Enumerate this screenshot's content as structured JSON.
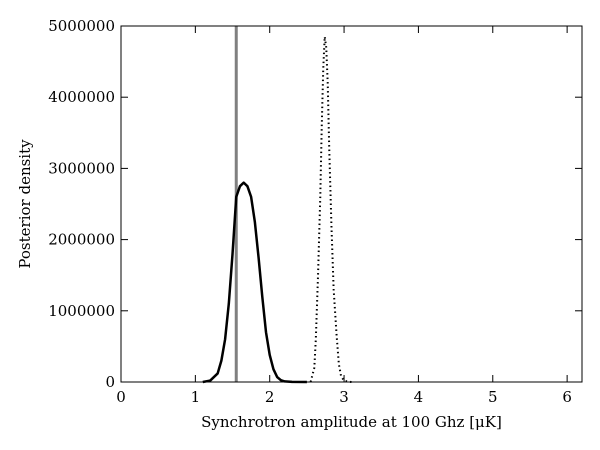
{
  "chart_data": {
    "type": "line",
    "title": "",
    "xlabel": "Synchrotron amplitude at 100 Ghz [μK]",
    "ylabel": "Posterior density",
    "xlim": [
      0,
      6.2
    ],
    "ylim": [
      0,
      5000000
    ],
    "xticks": [
      "0",
      "1",
      "2",
      "3",
      "4",
      "5",
      "6"
    ],
    "yticks": [
      "0",
      "1000000",
      "2000000",
      "3000000",
      "4000000",
      "5000000"
    ],
    "grid": false,
    "legend": "none",
    "reference_line": {
      "x": 1.55,
      "color": "#808080"
    },
    "series": [
      {
        "style": "solid",
        "color": "#000000",
        "x": [
          1.1,
          1.2,
          1.3,
          1.35,
          1.4,
          1.45,
          1.5,
          1.55,
          1.6,
          1.65,
          1.7,
          1.75,
          1.8,
          1.85,
          1.9,
          1.95,
          2.0,
          2.05,
          2.1,
          2.15,
          2.2,
          2.3,
          2.5
        ],
        "y": [
          0,
          20000,
          120000,
          300000,
          600000,
          1100000,
          1800000,
          2600000,
          2750000,
          2800000,
          2750000,
          2600000,
          2250000,
          1750000,
          1200000,
          700000,
          380000,
          180000,
          70000,
          25000,
          8000,
          1000,
          0
        ]
      },
      {
        "style": "dotted",
        "color": "#000000",
        "x": [
          2.55,
          2.6,
          2.62,
          2.65,
          2.68,
          2.7,
          2.72,
          2.74,
          2.76,
          2.78,
          2.8,
          2.83,
          2.86,
          2.9,
          2.93,
          2.96,
          3.0,
          3.05,
          3.1
        ],
        "y": [
          0,
          200000,
          600000,
          1500000,
          2600000,
          3600000,
          4400000,
          4850000,
          4700000,
          4200000,
          3300000,
          2200000,
          1300000,
          650000,
          250000,
          80000,
          20000,
          5000,
          0
        ]
      }
    ]
  }
}
